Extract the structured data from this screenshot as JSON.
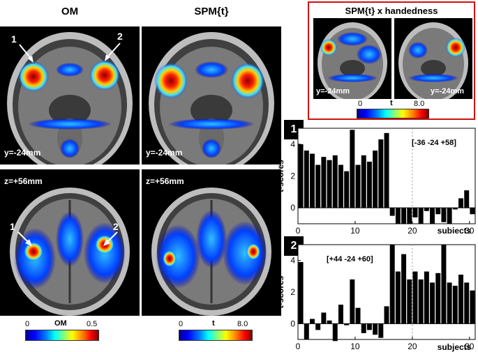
{
  "titles": {
    "om": "OM",
    "spm": "SPM{t}",
    "inset": "SPM{t} x handedness"
  },
  "slices": {
    "coronal": "y=-24mm",
    "axial": "z=+56mm"
  },
  "arrows": {
    "left": "1",
    "right": "2"
  },
  "colorbars": {
    "om": {
      "min": "0",
      "label": "OM",
      "max": "0.5"
    },
    "t": {
      "min": "0",
      "label": "t",
      "max": "8.0"
    },
    "inset": {
      "min": "0",
      "label": "t",
      "max": "8.0"
    }
  },
  "chart_data": [
    {
      "type": "bar",
      "badge": "1",
      "annotation": "[-36 -24 +58]",
      "xlabel": "subjects",
      "ylabel": "t-scores",
      "xlim": [
        0,
        31
      ],
      "ylim": [
        -1,
        5
      ],
      "xticks": [
        0,
        10,
        20,
        30
      ],
      "yticks": [
        0,
        2,
        4
      ],
      "x": [
        1,
        2,
        3,
        4,
        5,
        6,
        7,
        8,
        9,
        10,
        11,
        12,
        13,
        14,
        15,
        16,
        17,
        18,
        19,
        20,
        21,
        22,
        23,
        24,
        25,
        26,
        27,
        28,
        29,
        30,
        31
      ],
      "values": [
        4.0,
        3.6,
        3.4,
        2.7,
        3.2,
        3.0,
        3.3,
        2.7,
        2.3,
        4.9,
        2.7,
        3.3,
        2.9,
        3.6,
        4.3,
        4.7,
        -0.5,
        -1.0,
        -1.0,
        -1.0,
        -0.6,
        -1.0,
        -0.2,
        -1.0,
        -0.4,
        -0.9,
        -1.0,
        -0.1,
        0.6,
        1.1,
        -0.4
      ]
    },
    {
      "type": "bar",
      "badge": "2",
      "annotation": "[+44  -24 +60]",
      "xlabel": "subjects",
      "ylabel": "t-scores",
      "xlim": [
        0,
        31
      ],
      "ylim": [
        -1,
        5
      ],
      "xticks": [
        0,
        10,
        20,
        30
      ],
      "yticks": [
        0,
        2,
        4
      ],
      "x": [
        1,
        2,
        3,
        4,
        5,
        6,
        7,
        8,
        9,
        10,
        11,
        12,
        13,
        14,
        15,
        16,
        17,
        18,
        19,
        20,
        21,
        22,
        23,
        24,
        25,
        26,
        27,
        28,
        29,
        30,
        31
      ],
      "values": [
        3.9,
        -1.0,
        0.3,
        -0.4,
        0.7,
        0.2,
        -1.1,
        1.2,
        -0.1,
        2.8,
        1.0,
        -0.6,
        -0.4,
        -0.7,
        -0.9,
        1.1,
        5.0,
        3.3,
        4.4,
        2.8,
        3.3,
        2.8,
        3.3,
        2.6,
        3.2,
        5.0,
        2.6,
        2.4,
        3.1,
        2.6,
        2.1
      ]
    }
  ]
}
